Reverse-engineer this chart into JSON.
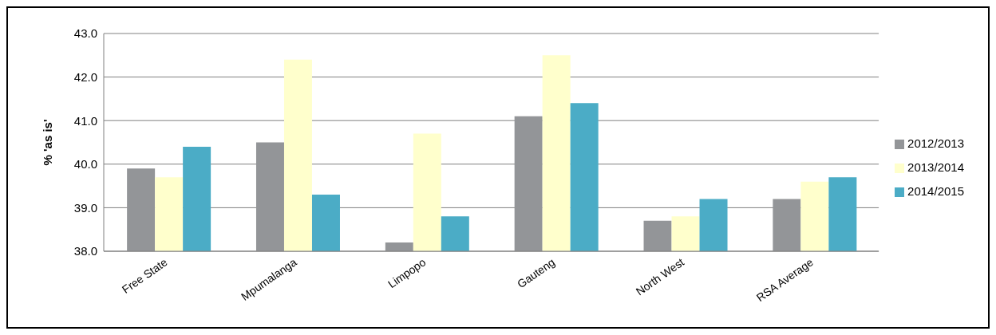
{
  "chart_data": {
    "type": "bar",
    "ylabel": "% 'as is'",
    "categories": [
      "Free State",
      "Mpumalanga",
      "Limpopo",
      "Gauteng",
      "North West",
      "RSA Average"
    ],
    "series": [
      {
        "name": "2012/2013",
        "color": "#939598",
        "values": [
          39.9,
          40.5,
          38.2,
          41.1,
          38.7,
          39.2
        ]
      },
      {
        "name": "2013/2014",
        "color": "#ffffcc",
        "values": [
          39.7,
          42.4,
          40.7,
          42.5,
          38.8,
          39.6
        ]
      },
      {
        "name": "2014/2015",
        "color": "#4bacc6",
        "values": [
          40.4,
          39.3,
          38.8,
          41.4,
          39.2,
          39.7
        ]
      }
    ],
    "ylim": [
      38,
      43
    ],
    "yticks": [
      {
        "value": 38,
        "label": "38.0"
      },
      {
        "value": 39,
        "label": "39.0"
      },
      {
        "value": 40,
        "label": "40.0"
      },
      {
        "value": 41,
        "label": "41.0"
      },
      {
        "value": 42,
        "label": "42.0"
      },
      {
        "value": 43,
        "label": "43.0"
      }
    ],
    "grid": "y",
    "legend": "right"
  }
}
